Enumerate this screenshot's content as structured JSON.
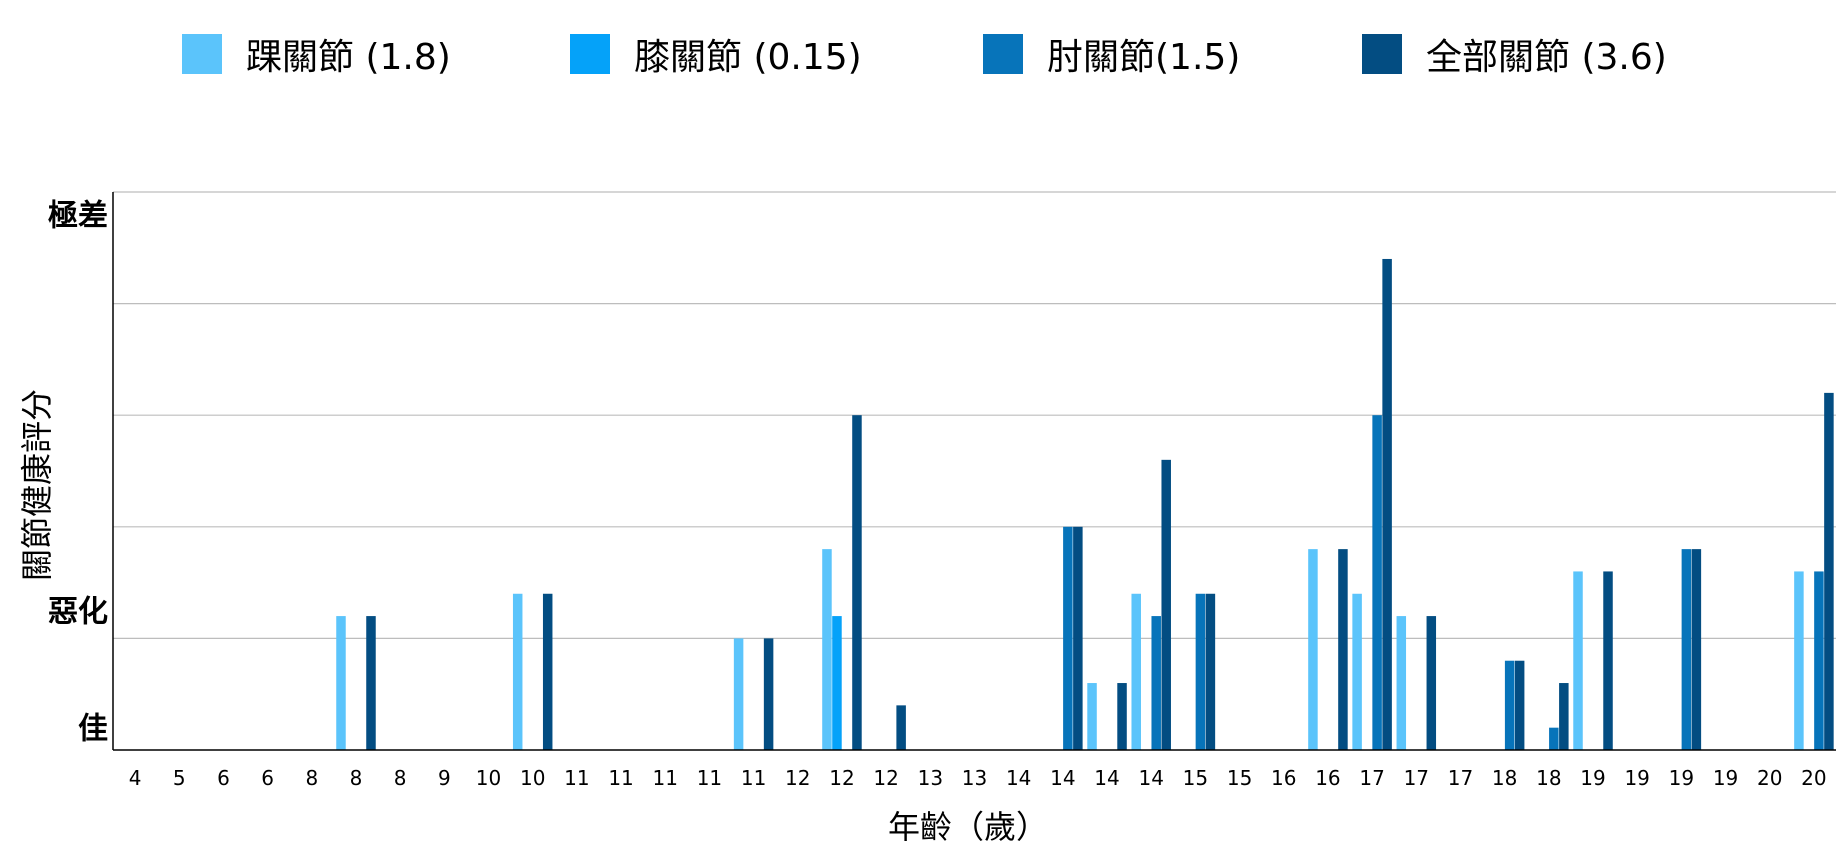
{
  "chart_data": {
    "type": "bar",
    "title": "",
    "xlabel": "年齡（歲）",
    "ylabel": "關節健康評分",
    "y_level_labels": [
      "極差",
      "惡化",
      "佳"
    ],
    "y_level_values": [
      4.8,
      1.25,
      0.2
    ],
    "ylim": [
      0,
      5
    ],
    "grid": "horizontal",
    "legend_position": "top",
    "colors": {
      "ankle": "#5bc4fb",
      "knee": "#05a2f9",
      "elbow": "#0774ba",
      "all": "#034d82",
      "grid": "#bdbdbd",
      "axis": "#000000"
    },
    "categories": [
      "4",
      "5",
      "6",
      "6",
      "8",
      "8",
      "8",
      "9",
      "10",
      "10",
      "11",
      "11",
      "11",
      "11",
      "11",
      "12",
      "12",
      "12",
      "13",
      "13",
      "14",
      "14",
      "14",
      "14",
      "15",
      "15",
      "16",
      "16",
      "17",
      "17",
      "17",
      "18",
      "18",
      "19",
      "19",
      "19",
      "19",
      "20",
      "20"
    ],
    "series": [
      {
        "name": "踝關節 (1.8)",
        "key": "ankle",
        "values": [
          0,
          0,
          0,
          0,
          0,
          1.2,
          0,
          0,
          0,
          1.4,
          0,
          0,
          0,
          0,
          1.0,
          0,
          1.8,
          0,
          0,
          0,
          0,
          0,
          0.6,
          1.4,
          0,
          0,
          0,
          1.8,
          1.4,
          1.2,
          0,
          0,
          0,
          1.6,
          0,
          0,
          0,
          0,
          1.6
        ]
      },
      {
        "name": "膝關節 (0.15)",
        "key": "knee",
        "values": [
          0,
          0,
          0,
          0,
          0,
          0,
          0,
          0,
          0,
          0,
          0,
          0,
          0,
          0,
          0,
          0,
          1.2,
          0,
          0,
          0,
          0,
          0,
          0,
          0,
          0,
          0,
          0,
          0,
          0,
          0,
          0,
          0,
          0,
          0,
          0,
          0,
          0,
          0,
          0
        ]
      },
      {
        "name": "肘關節(1.5)",
        "key": "elbow",
        "values": [
          0,
          0,
          0,
          0,
          0,
          0,
          0,
          0,
          0,
          0,
          0,
          0,
          0,
          0,
          0,
          0,
          0,
          0,
          0,
          0,
          0,
          2.0,
          0,
          1.2,
          1.4,
          0,
          0,
          0,
          3.0,
          0,
          0,
          0.8,
          0.2,
          0,
          0,
          1.8,
          0,
          0,
          1.6
        ]
      },
      {
        "name": "全部關節 (3.6)",
        "key": "all",
        "values": [
          0,
          0,
          0,
          0,
          0,
          1.2,
          0,
          0,
          0,
          1.4,
          0,
          0,
          0,
          0,
          1.0,
          0,
          3.0,
          0.4,
          0,
          0,
          0,
          2.0,
          0.6,
          2.6,
          1.4,
          0,
          0,
          1.8,
          4.4,
          1.2,
          0,
          0.8,
          0.6,
          1.6,
          0,
          1.8,
          0,
          0,
          3.2
        ]
      }
    ]
  }
}
